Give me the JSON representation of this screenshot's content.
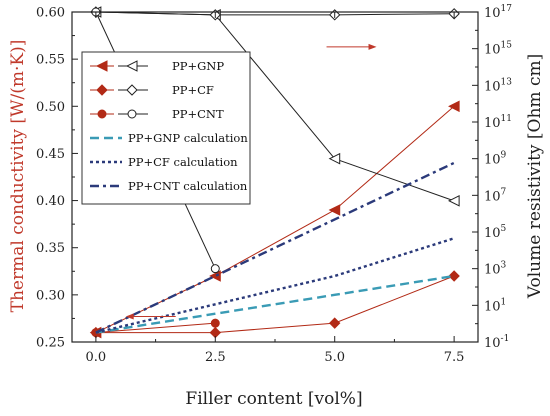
{
  "chart_data": {
    "type": "line",
    "title": "",
    "xlabel": "Filler content [vol%]",
    "ylabel_left": "Thermal conductivity [W/(m·K)]",
    "ylabel_right": "Volume resistivity [Ohm cm]",
    "xlim": [
      -0.5,
      8.0
    ],
    "x_ticks": [
      "0.0",
      "2.5",
      "5.0",
      "7.5"
    ],
    "ylim_left": [
      0.25,
      0.6
    ],
    "y_left_ticks": [
      "0.25",
      "0.30",
      "0.35",
      "0.40",
      "0.45",
      "0.50",
      "0.55",
      "0.60"
    ],
    "right_axis_log_exponent_range": [
      -1,
      17
    ],
    "y_right_ticks": [
      {
        "base": "10",
        "exp": "-1"
      },
      {
        "base": "10",
        "exp": "1"
      },
      {
        "base": "10",
        "exp": "3"
      },
      {
        "base": "10",
        "exp": "5"
      },
      {
        "base": "10",
        "exp": "7"
      },
      {
        "base": "10",
        "exp": "9"
      },
      {
        "base": "10",
        "exp": "11"
      },
      {
        "base": "10",
        "exp": "13"
      },
      {
        "base": "10",
        "exp": "15"
      },
      {
        "base": "10",
        "exp": "17"
      }
    ],
    "legend_placement": "upper-left",
    "colors": {
      "measured_tc": "#b22a16",
      "resistivity": "#222222",
      "gnp_calc": "#3a9bb5",
      "cf_calc": "#2b3a7a",
      "cnt_calc": "#2b3a7a",
      "left_axis": "#c0392b",
      "arrow": "#c0392b"
    },
    "series": [
      {
        "name": "PP+GNP",
        "axis": "left",
        "marker": "triangle-left-filled",
        "style": "solid",
        "x": [
          0.0,
          2.5,
          5.0,
          7.5
        ],
        "y": [
          0.26,
          0.32,
          0.39,
          0.5
        ]
      },
      {
        "name": "PP+CF",
        "axis": "left",
        "marker": "diamond-filled",
        "style": "solid",
        "x": [
          0.0,
          2.5,
          5.0,
          7.5
        ],
        "y": [
          0.26,
          0.26,
          0.27,
          0.32
        ]
      },
      {
        "name": "PP+CNT",
        "axis": "left",
        "marker": "circle-filled",
        "style": "solid",
        "x": [
          0.0,
          2.5
        ],
        "y": [
          0.26,
          0.27
        ]
      },
      {
        "name": "PP+GNP",
        "axis": "right",
        "marker": "triangle-left-open",
        "style": "solid",
        "x": [
          0.0,
          2.5,
          5.0,
          7.5
        ],
        "y": [
          1e+17,
          7e+16,
          1000000000.0,
          5000000.0
        ]
      },
      {
        "name": "PP+CF",
        "axis": "right",
        "marker": "diamond-open",
        "style": "solid",
        "x": [
          0.0,
          2.5,
          5.0,
          7.5
        ],
        "y": [
          1e+17,
          7e+16,
          7e+16,
          8e+16
        ]
      },
      {
        "name": "PP+CNT",
        "axis": "right",
        "marker": "circle-open",
        "style": "solid",
        "x": [
          0.0,
          2.5
        ],
        "y": [
          1e+17,
          1000.0
        ]
      },
      {
        "name": "PP+GNP calculation",
        "axis": "left",
        "marker": "none",
        "style": "dashed",
        "x": [
          0.0,
          2.5,
          5.0,
          7.5
        ],
        "y": [
          0.26,
          0.28,
          0.3,
          0.32
        ]
      },
      {
        "name": "PP+CF calculation",
        "axis": "left",
        "marker": "none",
        "style": "dotted",
        "x": [
          0.0,
          2.5,
          5.0,
          7.5
        ],
        "y": [
          0.26,
          0.29,
          0.32,
          0.36
        ]
      },
      {
        "name": "PP+CNT calculation",
        "axis": "left",
        "marker": "none",
        "style": "dashdot",
        "x": [
          0.0,
          2.5,
          5.0,
          7.5
        ],
        "y": [
          0.26,
          0.32,
          0.38,
          0.44
        ]
      }
    ],
    "legend": [
      {
        "label": "PP+GNP",
        "type": "pair",
        "marker": "triangle-left"
      },
      {
        "label": "PP+CF",
        "type": "pair",
        "marker": "diamond"
      },
      {
        "label": "PP+CNT",
        "type": "pair",
        "marker": "circle"
      },
      {
        "label": "PP+GNP calculation",
        "type": "line",
        "style": "dashed"
      },
      {
        "label": "PP+CF calculation",
        "type": "line",
        "style": "dotted"
      },
      {
        "label": "PP+CNT calculation",
        "type": "line",
        "style": "dashdot"
      }
    ],
    "axis_indicators": [
      {
        "points_to": "right",
        "x": 5.3,
        "y_left": 0.563
      },
      {
        "points_to": "left",
        "x": 1.2,
        "y_left": 0.277
      }
    ]
  }
}
